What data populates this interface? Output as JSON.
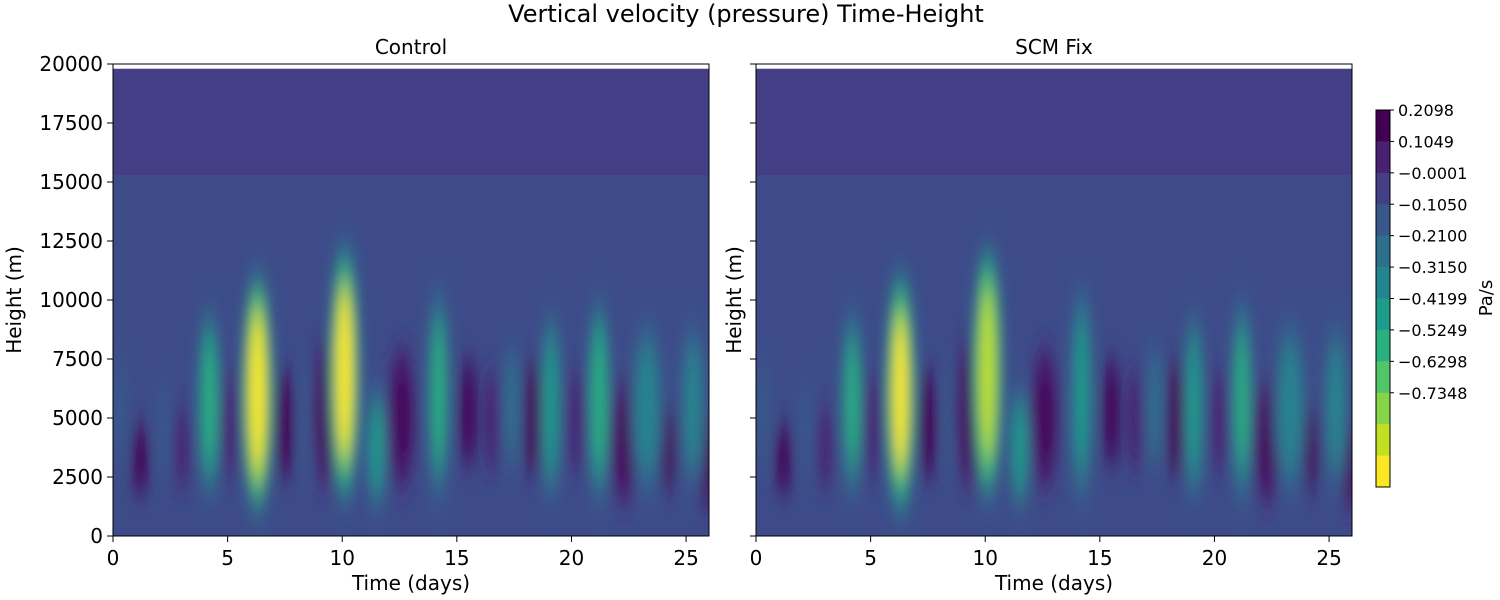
{
  "figure_title": "Vertical velocity (pressure) Time-Height",
  "colors": {
    "background_level": "#433e85",
    "colorbar_stops": [
      "#fde725",
      "#c2df23",
      "#86d549",
      "#52c569",
      "#2ab07f",
      "#1e9b8a",
      "#25858e",
      "#2d708e",
      "#38588c",
      "#433e85",
      "#482173",
      "#440154"
    ]
  },
  "chart_data": [
    {
      "type": "heatmap",
      "title": "Control",
      "xlabel": "Time (days)",
      "ylabel": "Height (m)",
      "xlim": [
        0,
        26
      ],
      "ylim": [
        0,
        20000
      ],
      "xticks": [
        0,
        5,
        10,
        15,
        20,
        25
      ],
      "yticks": [
        0,
        2500,
        5000,
        7500,
        10000,
        12500,
        15000,
        17500,
        20000
      ],
      "show_yticklabels": true,
      "field_top_height": 19800,
      "convective_top_height": 15300,
      "features": [
        {
          "t": 0.3,
          "z_bot": 1000,
          "z_top": 9500,
          "w": -0.1
        },
        {
          "t": 1.2,
          "z_bot": 500,
          "z_top": 6000,
          "w": 0.13
        },
        {
          "t": 2.2,
          "z_bot": 1000,
          "z_top": 8000,
          "w": -0.12
        },
        {
          "t": 3.0,
          "z_bot": 500,
          "z_top": 7000,
          "w": 0.1
        },
        {
          "t": 4.2,
          "z_bot": 800,
          "z_top": 10500,
          "w": -0.4
        },
        {
          "t": 5.1,
          "z_bot": 500,
          "z_top": 9000,
          "w": 0.12
        },
        {
          "t": 6.3,
          "z_bot": 300,
          "z_top": 11800,
          "w": -0.75
        },
        {
          "t": 7.5,
          "z_bot": 500,
          "z_top": 9000,
          "w": 0.15
        },
        {
          "t": 8.5,
          "z_bot": 1000,
          "z_top": 9000,
          "w": -0.12
        },
        {
          "t": 9.3,
          "z_bot": 1000,
          "z_top": 9500,
          "w": 0.17
        },
        {
          "t": 10.1,
          "z_bot": 800,
          "z_top": 13000,
          "w": -0.74
        },
        {
          "t": 11.5,
          "z_bot": 500,
          "z_top": 7000,
          "w": -0.33
        },
        {
          "t": 12.6,
          "z_bot": 1000,
          "z_top": 9000,
          "w": 0.16
        },
        {
          "t": 14.2,
          "z_bot": 500,
          "z_top": 11500,
          "w": -0.38
        },
        {
          "t": 15.5,
          "z_bot": 1000,
          "z_top": 9500,
          "w": 0.14
        },
        {
          "t": 16.5,
          "z_bot": 800,
          "z_top": 9000,
          "w": 0.12
        },
        {
          "t": 17.4,
          "z_bot": 1000,
          "z_top": 10000,
          "w": -0.15
        },
        {
          "t": 18.3,
          "z_bot": 500,
          "z_top": 9500,
          "w": 0.14
        },
        {
          "t": 19.1,
          "z_bot": 500,
          "z_top": 10500,
          "w": -0.35
        },
        {
          "t": 20.2,
          "z_bot": 800,
          "z_top": 9000,
          "w": 0.12
        },
        {
          "t": 21.2,
          "z_bot": 500,
          "z_top": 11000,
          "w": -0.4
        },
        {
          "t": 22.3,
          "z_bot": 500,
          "z_top": 7500,
          "w": 0.16
        },
        {
          "t": 23.3,
          "z_bot": 800,
          "z_top": 10000,
          "w": -0.25
        },
        {
          "t": 24.2,
          "z_bot": 500,
          "z_top": 7000,
          "w": 0.14
        },
        {
          "t": 25.3,
          "z_bot": 500,
          "z_top": 10500,
          "w": -0.22
        },
        {
          "t": 25.9,
          "z_bot": 500,
          "z_top": 6000,
          "w": 0.16
        }
      ]
    },
    {
      "type": "heatmap",
      "title": "SCM Fix",
      "xlabel": "Time (days)",
      "ylabel": "Height (m)",
      "xlim": [
        0,
        26
      ],
      "ylim": [
        0,
        20000
      ],
      "xticks": [
        0,
        5,
        10,
        15,
        20,
        25
      ],
      "yticks": [
        0,
        2500,
        5000,
        7500,
        10000,
        12500,
        15000,
        17500,
        20000
      ],
      "show_yticklabels": false,
      "field_top_height": 19800,
      "convective_top_height": 15300,
      "features": [
        {
          "t": 0.3,
          "z_bot": 1000,
          "z_top": 9500,
          "w": -0.1
        },
        {
          "t": 1.2,
          "z_bot": 500,
          "z_top": 6000,
          "w": 0.13
        },
        {
          "t": 2.2,
          "z_bot": 1000,
          "z_top": 8000,
          "w": -0.12
        },
        {
          "t": 3.0,
          "z_bot": 500,
          "z_top": 7000,
          "w": 0.1
        },
        {
          "t": 4.2,
          "z_bot": 800,
          "z_top": 10500,
          "w": -0.38
        },
        {
          "t": 5.1,
          "z_bot": 500,
          "z_top": 9000,
          "w": 0.12
        },
        {
          "t": 6.3,
          "z_bot": 300,
          "z_top": 11800,
          "w": -0.72
        },
        {
          "t": 7.5,
          "z_bot": 500,
          "z_top": 9000,
          "w": 0.15
        },
        {
          "t": 8.5,
          "z_bot": 1000,
          "z_top": 9000,
          "w": -0.12
        },
        {
          "t": 9.3,
          "z_bot": 1000,
          "z_top": 9500,
          "w": 0.17
        },
        {
          "t": 10.1,
          "z_bot": 800,
          "z_top": 13000,
          "w": -0.7
        },
        {
          "t": 11.5,
          "z_bot": 500,
          "z_top": 7000,
          "w": -0.33
        },
        {
          "t": 12.6,
          "z_bot": 1000,
          "z_top": 9000,
          "w": 0.16
        },
        {
          "t": 14.2,
          "z_bot": 500,
          "z_top": 11500,
          "w": -0.36
        },
        {
          "t": 15.5,
          "z_bot": 1000,
          "z_top": 9500,
          "w": 0.14
        },
        {
          "t": 16.5,
          "z_bot": 800,
          "z_top": 9000,
          "w": 0.12
        },
        {
          "t": 17.4,
          "z_bot": 1000,
          "z_top": 10000,
          "w": -0.15
        },
        {
          "t": 18.3,
          "z_bot": 500,
          "z_top": 9500,
          "w": 0.14
        },
        {
          "t": 19.1,
          "z_bot": 500,
          "z_top": 10500,
          "w": -0.33
        },
        {
          "t": 20.2,
          "z_bot": 800,
          "z_top": 9000,
          "w": 0.12
        },
        {
          "t": 21.2,
          "z_bot": 500,
          "z_top": 11000,
          "w": -0.38
        },
        {
          "t": 22.3,
          "z_bot": 500,
          "z_top": 7500,
          "w": 0.16
        },
        {
          "t": 23.3,
          "z_bot": 800,
          "z_top": 10000,
          "w": -0.25
        },
        {
          "t": 24.2,
          "z_bot": 500,
          "z_top": 7000,
          "w": 0.14
        },
        {
          "t": 25.3,
          "z_bot": 500,
          "z_top": 10500,
          "w": -0.22
        },
        {
          "t": 25.9,
          "z_bot": 500,
          "z_top": 6000,
          "w": 0.16
        }
      ]
    }
  ],
  "colorbar": {
    "label": "Pa/s",
    "min": -0.7873,
    "max": 0.2098,
    "tick_labels": [
      "0.2098",
      "0.1049",
      "−0.0001",
      "−0.1050",
      "−0.2100",
      "−0.3150",
      "−0.4199",
      "−0.5249",
      "−0.6298",
      "−0.7348"
    ],
    "tick_values": [
      0.2098,
      0.1049,
      -0.0001,
      -0.105,
      -0.21,
      -0.315,
      -0.4199,
      -0.5249,
      -0.6298,
      -0.7348
    ]
  }
}
